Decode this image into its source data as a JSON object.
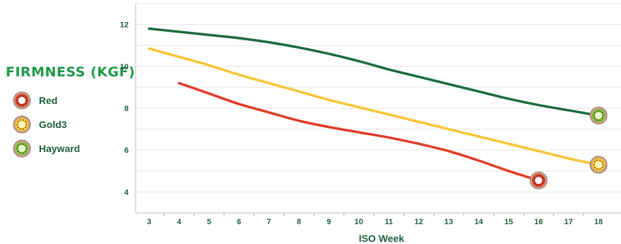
{
  "chart_data": {
    "type": "line",
    "title": "FIRMNESS (KGF)",
    "xlabel": "ISO Week",
    "ylabel": "",
    "x_ticks": [
      3,
      4,
      5,
      6,
      7,
      8,
      9,
      10,
      11,
      12,
      13,
      14,
      15,
      16,
      17,
      18
    ],
    "y_ticks": [
      4,
      6,
      8,
      10,
      12
    ],
    "xlim": [
      2.55,
      18.75
    ],
    "ylim": [
      3,
      13
    ],
    "grid": "horizontal",
    "legend_position": "left",
    "series": [
      {
        "name": "Red",
        "color": "#e03c28",
        "icon": "red-kiwi-slice-icon",
        "x": [
          4,
          5,
          6,
          7,
          8,
          9,
          10,
          11,
          12,
          13,
          14,
          15,
          16
        ],
        "y": [
          9.2,
          8.7,
          8.2,
          7.8,
          7.4,
          7.1,
          6.85,
          6.6,
          6.3,
          5.95,
          5.5,
          5.0,
          4.55
        ]
      },
      {
        "name": "Gold3",
        "color": "#f7c535",
        "icon": "gold-kiwi-slice-icon",
        "x": [
          3,
          4,
          5,
          6,
          7,
          8,
          9,
          10,
          11,
          12,
          13,
          14,
          15,
          16,
          17,
          18
        ],
        "y": [
          10.85,
          10.45,
          10.05,
          9.6,
          9.2,
          8.8,
          8.4,
          8.05,
          7.7,
          7.35,
          7.0,
          6.65,
          6.3,
          5.95,
          5.6,
          5.3
        ]
      },
      {
        "name": "Hayward",
        "color": "#1a6b3d",
        "icon": "green-kiwi-slice-icon",
        "x": [
          3,
          4,
          5,
          6,
          7,
          8,
          9,
          10,
          11,
          12,
          13,
          14,
          15,
          16,
          17,
          18
        ],
        "y": [
          11.8,
          11.65,
          11.5,
          11.35,
          11.15,
          10.9,
          10.6,
          10.25,
          9.85,
          9.5,
          9.15,
          8.8,
          8.45,
          8.15,
          7.9,
          7.65
        ]
      }
    ]
  }
}
